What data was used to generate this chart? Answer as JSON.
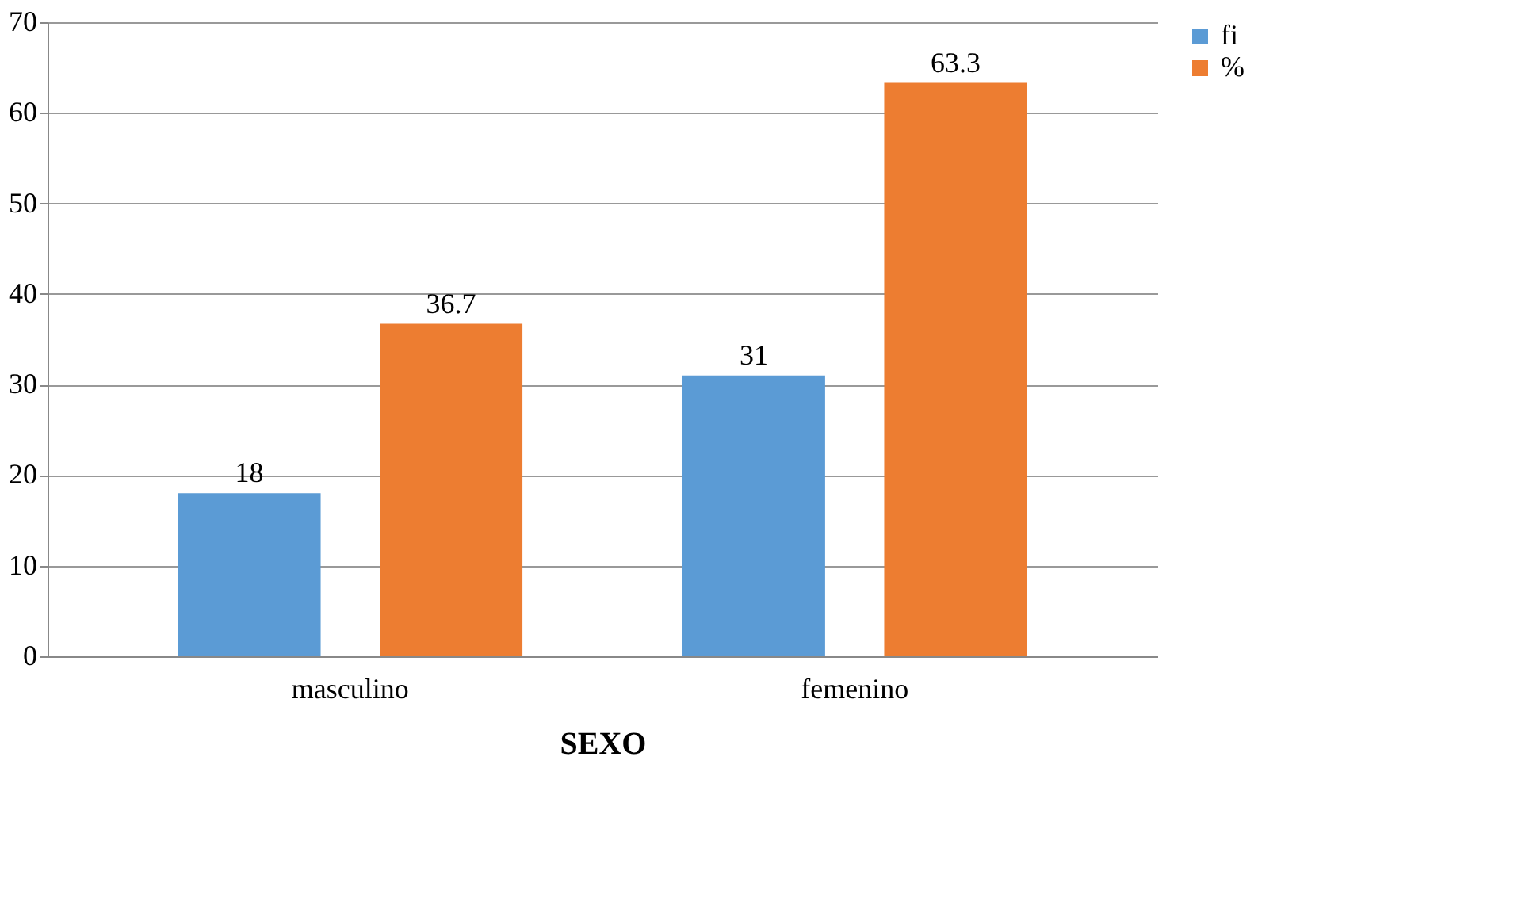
{
  "chart_data": {
    "type": "bar",
    "xlabel": "SEXO",
    "categories": [
      "masculino",
      "femenino"
    ],
    "series": [
      {
        "name": "fi",
        "color": "#5b9bd5",
        "values": [
          18,
          31
        ]
      },
      {
        "name": "%",
        "color": "#ed7d31",
        "values": [
          36.7,
          63.3
        ]
      }
    ],
    "ylim": [
      0,
      70
    ],
    "yticks": [
      0,
      10,
      20,
      30,
      40,
      50,
      60,
      70
    ],
    "grid": "y",
    "legend": "right",
    "data_labels": true
  }
}
